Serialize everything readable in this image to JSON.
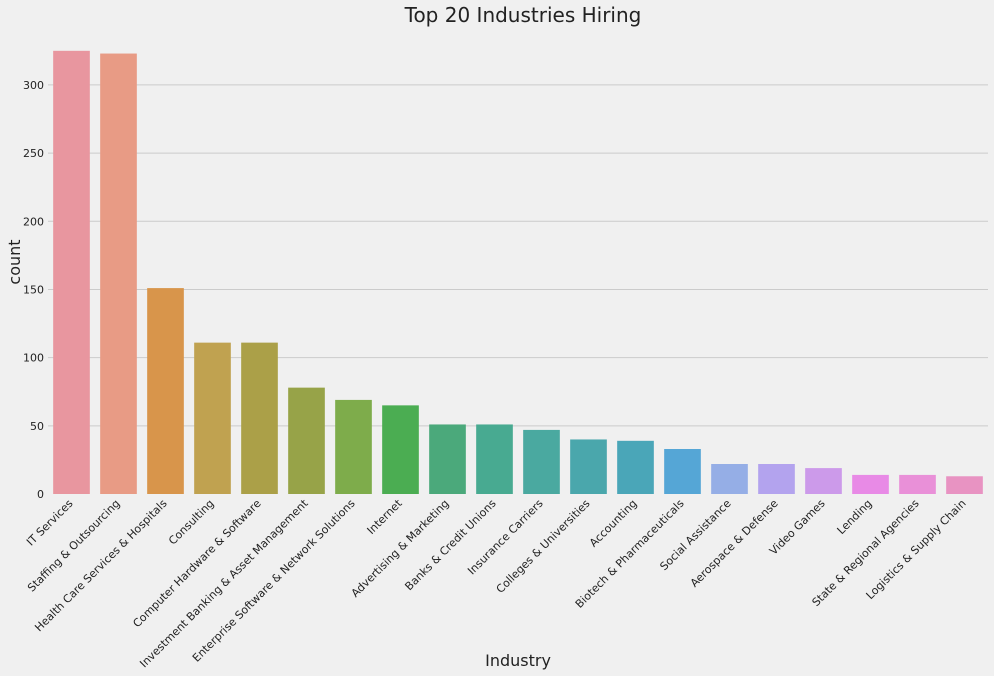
{
  "chart_data": {
    "type": "bar",
    "title": "Top 20 Industries Hiring",
    "xlabel": "Industry",
    "ylabel": "count",
    "ylim": [
      0,
      330
    ],
    "yticks": [
      0,
      50,
      100,
      150,
      200,
      250,
      300
    ],
    "grid": "horizontal",
    "categories": [
      "IT Services",
      "Staffing & Outsourcing",
      "Health Care Services & Hospitals",
      "Consulting",
      "Computer Hardware & Software",
      "Investment Banking & Asset Management",
      "Enterprise Software & Network Solutions",
      "Internet",
      "Advertising & Marketing",
      "Banks & Credit Unions",
      "Insurance Carriers",
      "Colleges & Universities",
      "Accounting",
      "Biotech & Pharmaceuticals",
      "Social Assistance",
      "Aerospace & Defense",
      "Video Games",
      "Lending",
      "State & Regional Agencies",
      "Logistics & Supply Chain"
    ],
    "values": [
      325,
      323,
      151,
      111,
      111,
      78,
      69,
      65,
      51,
      51,
      47,
      40,
      39,
      33,
      22,
      22,
      19,
      14,
      14,
      13
    ],
    "colors": [
      "#e8969f",
      "#e89b85",
      "#d8954b",
      "#c0a250",
      "#aba048",
      "#97a348",
      "#7eac4b",
      "#4bad52",
      "#4ba97b",
      "#48aa91",
      "#4aa9a0",
      "#4aa7ac",
      "#4aa6b8",
      "#55a6d6",
      "#95aee6",
      "#b3a3ee",
      "#cc9aea",
      "#e88ae6",
      "#e990d8",
      "#e893c2"
    ]
  }
}
